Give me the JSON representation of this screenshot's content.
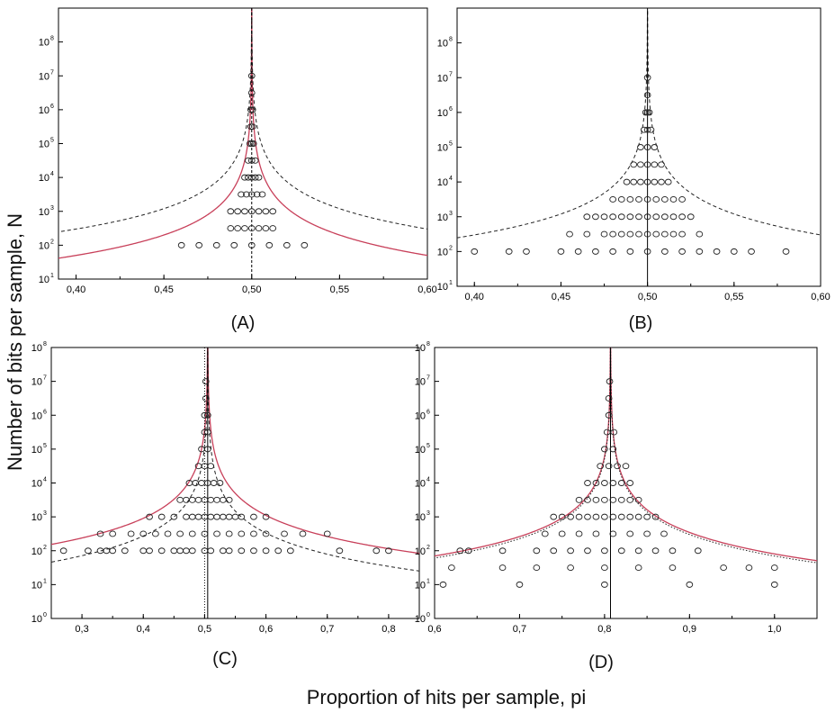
{
  "figure": {
    "xlabel": "Proportion of hits per sample, pi",
    "ylabel": "Number of bits per sample, N",
    "colors": {
      "red_curve": "#c8405a",
      "dash_curve": "#222222",
      "points": "#222222"
    }
  },
  "chart_data": [
    {
      "type": "scatter",
      "panel_label": "(A)",
      "xlim": [
        0.39,
        0.6
      ],
      "ylim_log10": [
        1,
        9
      ],
      "yscale": "log",
      "xticks": [
        "0,40",
        "0,45",
        "0,50",
        "0,55",
        "0,60"
      ],
      "xtick_values": [
        0.4,
        0.45,
        0.5,
        0.55,
        0.6
      ],
      "ytick_exponents": [
        1,
        2,
        3,
        4,
        5,
        6,
        7,
        8
      ],
      "center": 0.5,
      "vertical_line": {
        "x": 0.5,
        "style": "dashed"
      },
      "curves": [
        {
          "style": "solid-red",
          "k": 0.5
        },
        {
          "style": "dashed",
          "k": 3.0
        }
      ],
      "points": [
        {
          "N": 100,
          "x": [
            0.46,
            0.47,
            0.48,
            0.49,
            0.5,
            0.51,
            0.52,
            0.53
          ]
        },
        {
          "N": 316,
          "x": [
            0.488,
            0.492,
            0.496,
            0.5,
            0.504,
            0.508,
            0.512
          ]
        },
        {
          "N": 1000,
          "x": [
            0.488,
            0.492,
            0.496,
            0.5,
            0.504,
            0.508,
            0.512
          ]
        },
        {
          "N": 3162,
          "x": [
            0.494,
            0.497,
            0.5,
            0.503,
            0.506
          ]
        },
        {
          "N": 10000,
          "x": [
            0.496,
            0.498,
            0.5,
            0.502,
            0.504
          ]
        },
        {
          "N": 31623,
          "x": [
            0.498,
            0.5,
            0.502
          ]
        },
        {
          "N": 100000,
          "x": [
            0.499,
            0.5,
            0.501
          ]
        },
        {
          "N": 316228,
          "x": [
            0.4995,
            0.5005
          ]
        },
        {
          "N": 1000000,
          "x": [
            0.4995,
            0.5005
          ]
        },
        {
          "N": 3162278,
          "x": [
            0.5
          ]
        },
        {
          "N": 10000000,
          "x": [
            0.5
          ]
        }
      ]
    },
    {
      "type": "scatter",
      "panel_label": "(B)",
      "xlim": [
        0.39,
        0.6
      ],
      "ylim_log10": [
        1,
        9
      ],
      "yscale": "log",
      "xticks": [
        "0,40",
        "0,45",
        "0,50",
        "0,55",
        "0,60"
      ],
      "xtick_values": [
        0.4,
        0.45,
        0.5,
        0.55,
        0.6
      ],
      "ytick_exponents": [
        1,
        2,
        3,
        4,
        5,
        6,
        7,
        8
      ],
      "center": 0.5,
      "vertical_line": {
        "x": 0.5,
        "style": "solid"
      },
      "curves": [
        {
          "style": "dashed",
          "k": 3.0
        }
      ],
      "points": [
        {
          "N": 100,
          "x": [
            0.4,
            0.42,
            0.43,
            0.45,
            0.46,
            0.47,
            0.48,
            0.49,
            0.5,
            0.51,
            0.52,
            0.53,
            0.54,
            0.55,
            0.56,
            0.58
          ]
        },
        {
          "N": 316,
          "x": [
            0.455,
            0.465,
            0.475,
            0.48,
            0.485,
            0.49,
            0.495,
            0.5,
            0.505,
            0.51,
            0.515,
            0.52,
            0.53
          ]
        },
        {
          "N": 1000,
          "x": [
            0.465,
            0.47,
            0.475,
            0.48,
            0.485,
            0.49,
            0.495,
            0.5,
            0.505,
            0.51,
            0.515,
            0.52,
            0.525
          ]
        },
        {
          "N": 3162,
          "x": [
            0.48,
            0.485,
            0.49,
            0.495,
            0.5,
            0.505,
            0.51,
            0.515,
            0.52
          ]
        },
        {
          "N": 10000,
          "x": [
            0.488,
            0.492,
            0.496,
            0.5,
            0.504,
            0.508,
            0.512
          ]
        },
        {
          "N": 31623,
          "x": [
            0.492,
            0.496,
            0.5,
            0.504,
            0.508
          ]
        },
        {
          "N": 100000,
          "x": [
            0.496,
            0.5,
            0.504
          ]
        },
        {
          "N": 316228,
          "x": [
            0.498,
            0.5,
            0.502
          ]
        },
        {
          "N": 1000000,
          "x": [
            0.499,
            0.5,
            0.501
          ]
        },
        {
          "N": 3162278,
          "x": [
            0.5
          ]
        },
        {
          "N": 10000000,
          "x": [
            0.5
          ]
        }
      ]
    },
    {
      "type": "scatter",
      "panel_label": "(C)",
      "xlim": [
        0.25,
        0.85
      ],
      "ylim_log10": [
        0,
        8
      ],
      "yscale": "log",
      "xticks": [
        "0,3",
        "0,4",
        "0,5",
        "0,6",
        "0,7",
        "0,8"
      ],
      "xtick_values": [
        0.3,
        0.4,
        0.5,
        0.6,
        0.7,
        0.8
      ],
      "ytick_exponents": [
        0,
        1,
        2,
        3,
        4,
        5,
        6,
        7,
        8
      ],
      "center": 0.505,
      "vertical_line": {
        "x": 0.505,
        "style": "solid"
      },
      "extra_vertical_line": {
        "x": 0.5,
        "style": "dotted"
      },
      "curves": [
        {
          "style": "solid-red",
          "k": 10.0
        },
        {
          "style": "dashed",
          "k": 3.0
        }
      ],
      "points": [
        {
          "N": 100,
          "x": [
            0.27,
            0.31,
            0.33,
            0.34,
            0.35,
            0.37,
            0.4,
            0.41,
            0.43,
            0.45,
            0.46,
            0.47,
            0.48,
            0.5,
            0.51,
            0.53,
            0.54,
            0.56,
            0.58,
            0.6,
            0.62,
            0.64,
            0.72,
            0.78,
            0.8
          ]
        },
        {
          "N": 316,
          "x": [
            0.33,
            0.35,
            0.38,
            0.4,
            0.42,
            0.44,
            0.46,
            0.48,
            0.5,
            0.52,
            0.54,
            0.56,
            0.58,
            0.6,
            0.63,
            0.66,
            0.7
          ]
        },
        {
          "N": 1000,
          "x": [
            0.41,
            0.43,
            0.45,
            0.47,
            0.48,
            0.49,
            0.5,
            0.51,
            0.52,
            0.53,
            0.54,
            0.55,
            0.56,
            0.58,
            0.6
          ]
        },
        {
          "N": 3162,
          "x": [
            0.46,
            0.47,
            0.48,
            0.49,
            0.5,
            0.51,
            0.52,
            0.53,
            0.54
          ]
        },
        {
          "N": 10000,
          "x": [
            0.475,
            0.485,
            0.495,
            0.505,
            0.515,
            0.525
          ]
        },
        {
          "N": 31623,
          "x": [
            0.49,
            0.5,
            0.51
          ]
        },
        {
          "N": 100000,
          "x": [
            0.495,
            0.505
          ]
        },
        {
          "N": 316228,
          "x": [
            0.5,
            0.505
          ]
        },
        {
          "N": 1000000,
          "x": [
            0.5,
            0.505
          ]
        },
        {
          "N": 3162278,
          "x": [
            0.502
          ]
        },
        {
          "N": 10000000,
          "x": [
            0.502
          ]
        }
      ]
    },
    {
      "type": "scatter",
      "panel_label": "(D)",
      "xlim": [
        0.6,
        1.05
      ],
      "ylim_log10": [
        0,
        8
      ],
      "yscale": "log",
      "xticks": [
        "0,6",
        "0,7",
        "0,8",
        "0,9",
        "1,0"
      ],
      "xtick_values": [
        0.6,
        0.7,
        0.8,
        0.9,
        1.0
      ],
      "ytick_exponents": [
        0,
        1,
        2,
        3,
        4,
        5,
        6,
        7,
        8
      ],
      "center": 0.807,
      "vertical_line": {
        "x": 0.807,
        "style": "solid"
      },
      "curves": [
        {
          "style": "solid-red",
          "k": 3.0
        },
        {
          "style": "dotted",
          "k": 2.6
        }
      ],
      "points": [
        {
          "N": 10,
          "x": [
            0.61,
            0.7,
            0.8,
            0.9,
            1.0
          ]
        },
        {
          "N": 31.6,
          "x": [
            0.62,
            0.68,
            0.72,
            0.76,
            0.8,
            0.84,
            0.88,
            0.94,
            0.97,
            1.0
          ]
        },
        {
          "N": 100,
          "x": [
            0.63,
            0.64,
            0.68,
            0.72,
            0.74,
            0.76,
            0.78,
            0.8,
            0.82,
            0.84,
            0.86,
            0.88,
            0.91
          ]
        },
        {
          "N": 316,
          "x": [
            0.73,
            0.75,
            0.77,
            0.79,
            0.81,
            0.83,
            0.85,
            0.87
          ]
        },
        {
          "N": 1000,
          "x": [
            0.74,
            0.75,
            0.76,
            0.77,
            0.78,
            0.79,
            0.8,
            0.81,
            0.82,
            0.83,
            0.84,
            0.85,
            0.86
          ]
        },
        {
          "N": 3162,
          "x": [
            0.77,
            0.78,
            0.79,
            0.8,
            0.81,
            0.82,
            0.83,
            0.84
          ]
        },
        {
          "N": 10000,
          "x": [
            0.78,
            0.79,
            0.8,
            0.81,
            0.82,
            0.83
          ]
        },
        {
          "N": 31623,
          "x": [
            0.795,
            0.805,
            0.815,
            0.825
          ]
        },
        {
          "N": 100000,
          "x": [
            0.8,
            0.81
          ]
        },
        {
          "N": 316228,
          "x": [
            0.803,
            0.811
          ]
        },
        {
          "N": 1000000,
          "x": [
            0.805
          ]
        },
        {
          "N": 3162278,
          "x": [
            0.805
          ]
        },
        {
          "N": 10000000,
          "x": [
            0.806
          ]
        }
      ]
    }
  ]
}
